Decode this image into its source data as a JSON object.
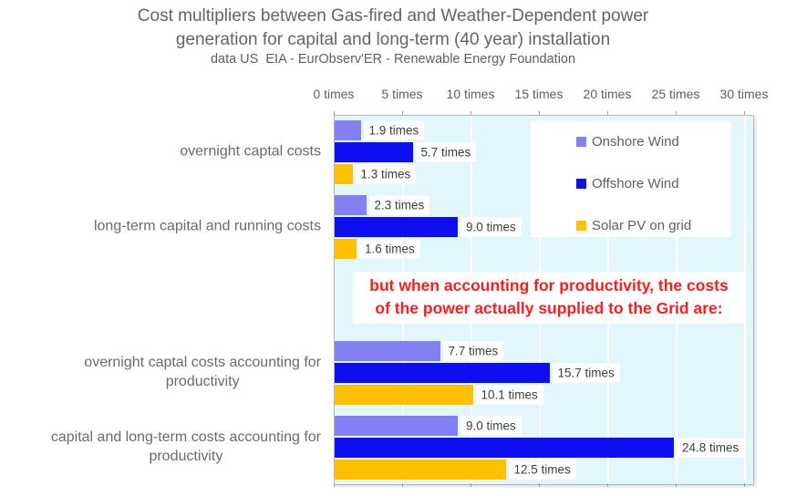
{
  "header": {
    "title": "Cost multipliers between Gas-fired and Weather-Dependent power generation for capital and long-term (40 year) installation",
    "subtitle": "data US  EIA - EurObserv'ER - Renewable Energy Foundation"
  },
  "chart_data": {
    "type": "bar",
    "orientation": "horizontal",
    "title": "Cost multipliers between Gas-fired and Weather-Dependent power generation for capital and long-term (40 year) installation",
    "subtitle": "data US  EIA - EurObserv'ER - Renewable Energy Foundation",
    "categories": [
      "overnight captal costs",
      "long-term capital and running costs",
      "overnight captal costs accounting for productivity",
      "capital and long-term costs accounting for productivity"
    ],
    "category_lines": [
      [
        "overnight captal costs"
      ],
      [
        "long-term capital and running costs"
      ],
      [
        "overnight captal costs accounting for",
        "productivity"
      ],
      [
        "capital and long-term costs accounting for",
        "productivity"
      ]
    ],
    "series": [
      {
        "name": "Onshore Wind",
        "color": "#8181f5",
        "values": [
          1.9,
          2.3,
          7.7,
          9.0
        ],
        "display_labels": [
          "1.9 times",
          "2.3 times",
          "7.7 times",
          "9.0 times"
        ]
      },
      {
        "name": "Offshore Wind",
        "color": "#0e0ef0",
        "values": [
          5.7,
          9.0,
          15.7,
          24.8
        ],
        "display_labels": [
          "5.7 times",
          "9.0 times",
          "15.7 times",
          "24.8 times"
        ]
      },
      {
        "name": "Solar PV on grid",
        "color": "#ffc000",
        "values": [
          1.3,
          1.6,
          10.1,
          12.5
        ],
        "display_labels": [
          "1.3 times",
          "1.6 times",
          "10.1 times",
          "12.5 times"
        ]
      }
    ],
    "x_axis": {
      "ticks": [
        "0 times",
        "5 times",
        "10 times",
        "15 times",
        "20 times",
        "25 times",
        "30 times"
      ],
      "tick_values": [
        0,
        5,
        10,
        15,
        20,
        25,
        30
      ],
      "xlim": [
        0,
        30.6
      ],
      "grid": true
    },
    "annotation": {
      "lines": [
        "but when accounting for productivity, the costs",
        "of the power actually supplied to the Grid are:"
      ],
      "color": "#fb1d1d"
    },
    "legend": {
      "position": "top-right-inside",
      "entries": [
        "Onshore Wind",
        "Offshore Wind",
        "Solar PV on grid"
      ]
    },
    "colors": {
      "plot_background": "#e1f7fb",
      "plot_border": "#b3b7ba",
      "axis_text": "#5f5f5f",
      "value_text": "#3d3d3d",
      "annotation_text": "#fb1d1d"
    }
  }
}
